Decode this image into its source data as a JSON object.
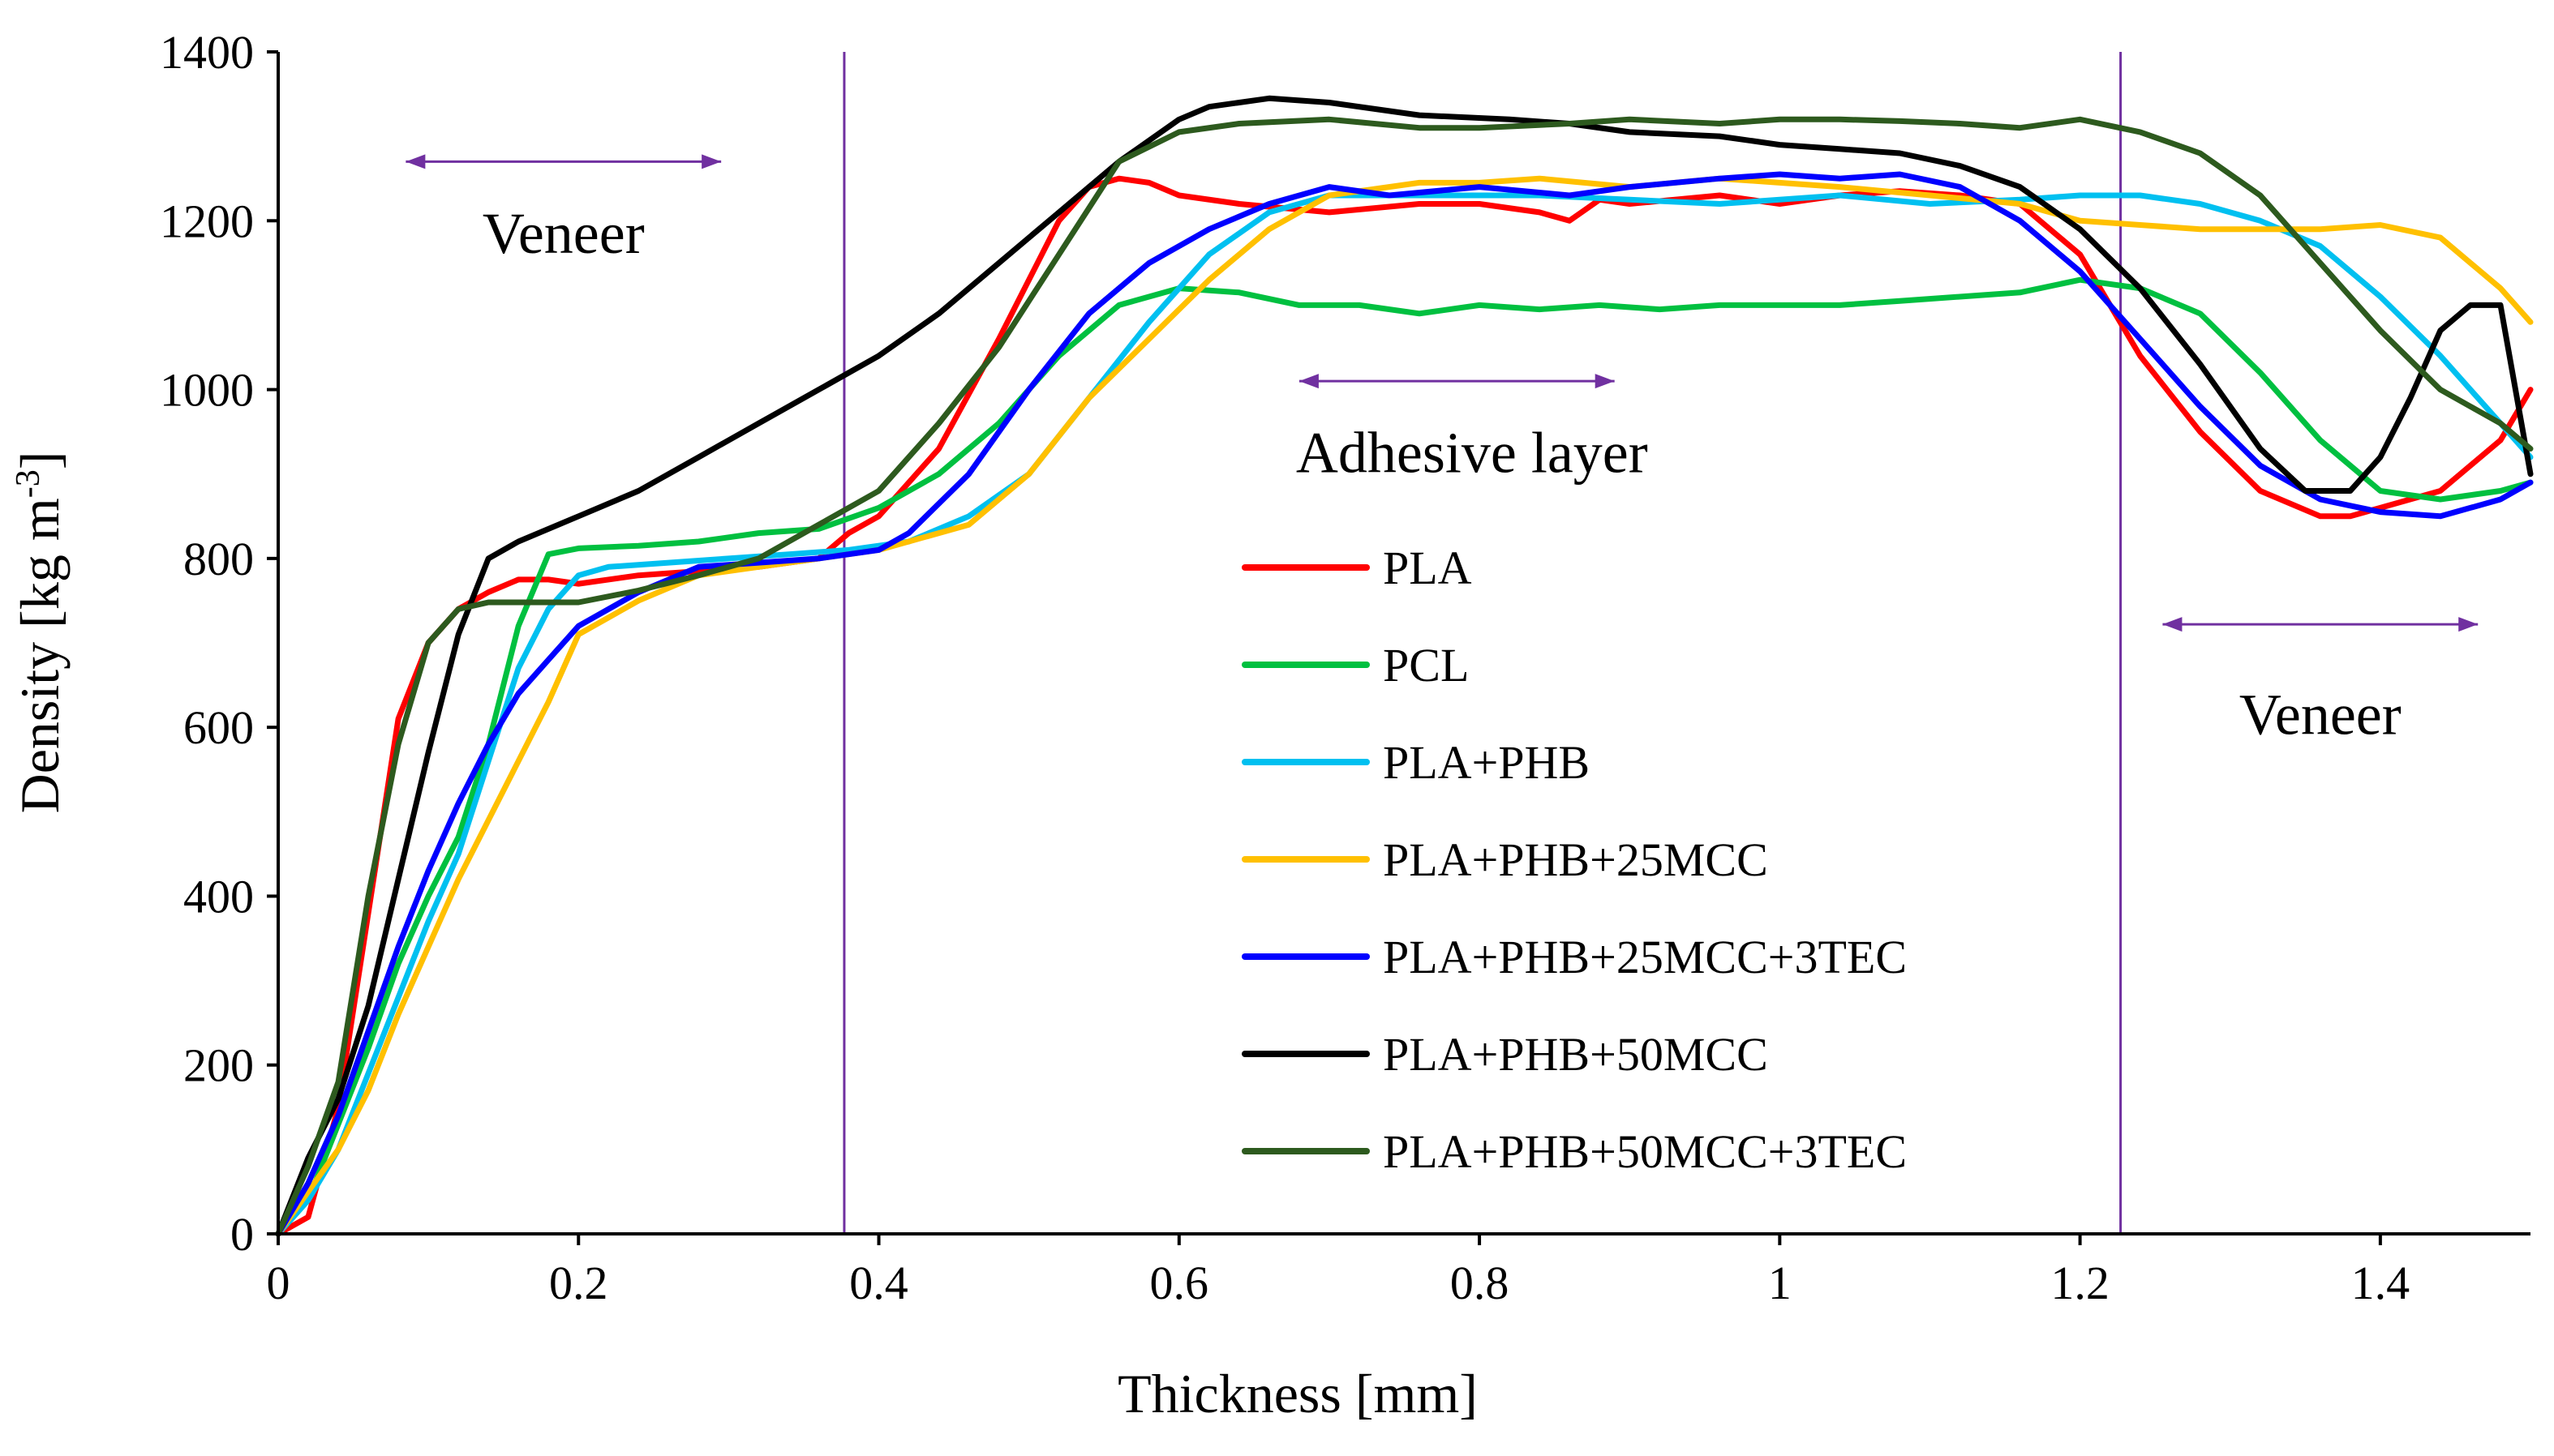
{
  "chart_data": {
    "type": "line",
    "title": "",
    "xlabel": "Thickness  [mm]",
    "ylabel": "Density  [kg m",
    "ylabel_sup": "-3",
    "ylabel_close": "]",
    "xlim": [
      0,
      1.5
    ],
    "ylim": [
      0,
      1400
    ],
    "xticks": [
      0,
      0.2,
      0.4,
      0.6,
      0.8,
      1,
      1.2,
      1.4
    ],
    "xtick_labels": [
      "0",
      "0.2",
      "0.4",
      "0.6",
      "0.8",
      "1",
      "1.2",
      "1.4"
    ],
    "yticks": [
      0,
      200,
      400,
      600,
      800,
      1000,
      1200,
      1400
    ],
    "ytick_labels": [
      "0",
      "200",
      "400",
      "600",
      "800",
      "1000",
      "1200",
      "1400"
    ],
    "grid": false,
    "legend_position": "center",
    "vlines": [
      0.377,
      1.227
    ],
    "annotations": [
      {
        "text": "Veneer",
        "arrow_from": 0.085,
        "arrow_to": 0.295,
        "arrow_y": 1270,
        "text_x": 0.19,
        "text_y": 1185
      },
      {
        "text": "Adhesive layer",
        "arrow_from": 0.68,
        "arrow_to": 0.89,
        "arrow_y": 1010,
        "text_x": 0.795,
        "text_y": 925
      },
      {
        "text": "Veneer",
        "arrow_from": 1.255,
        "arrow_to": 1.465,
        "arrow_y": 722,
        "text_x": 1.36,
        "text_y": 615
      }
    ],
    "series": [
      {
        "name": "PLA",
        "color": "#ff0000",
        "x": [
          0,
          0.02,
          0.04,
          0.06,
          0.08,
          0.1,
          0.12,
          0.14,
          0.16,
          0.18,
          0.2,
          0.24,
          0.28,
          0.32,
          0.36,
          0.38,
          0.4,
          0.44,
          0.48,
          0.52,
          0.54,
          0.56,
          0.58,
          0.6,
          0.64,
          0.7,
          0.76,
          0.8,
          0.84,
          0.86,
          0.88,
          0.9,
          0.96,
          1.0,
          1.04,
          1.08,
          1.12,
          1.16,
          1.2,
          1.24,
          1.28,
          1.32,
          1.36,
          1.38,
          1.4,
          1.44,
          1.48,
          1.5
        ],
        "values": [
          0,
          20,
          150,
          380,
          610,
          700,
          740,
          760,
          775,
          775,
          770,
          780,
          785,
          790,
          800,
          830,
          850,
          930,
          1060,
          1200,
          1240,
          1250,
          1245,
          1230,
          1220,
          1210,
          1220,
          1220,
          1210,
          1200,
          1225,
          1220,
          1230,
          1220,
          1230,
          1235,
          1230,
          1220,
          1160,
          1040,
          950,
          880,
          850,
          850,
          860,
          880,
          940,
          1000
        ]
      },
      {
        "name": "PCL",
        "color": "#00c040",
        "x": [
          0,
          0.02,
          0.04,
          0.06,
          0.08,
          0.1,
          0.12,
          0.14,
          0.16,
          0.18,
          0.2,
          0.24,
          0.28,
          0.32,
          0.36,
          0.4,
          0.44,
          0.48,
          0.52,
          0.56,
          0.6,
          0.64,
          0.68,
          0.72,
          0.76,
          0.8,
          0.84,
          0.88,
          0.92,
          0.96,
          1.0,
          1.04,
          1.08,
          1.12,
          1.16,
          1.2,
          1.24,
          1.28,
          1.32,
          1.36,
          1.4,
          1.44,
          1.48,
          1.5
        ],
        "values": [
          0,
          40,
          130,
          220,
          320,
          400,
          470,
          580,
          720,
          805,
          812,
          815,
          820,
          830,
          835,
          860,
          900,
          960,
          1040,
          1100,
          1120,
          1115,
          1100,
          1100,
          1090,
          1100,
          1095,
          1100,
          1095,
          1100,
          1100,
          1100,
          1105,
          1110,
          1115,
          1130,
          1120,
          1090,
          1020,
          940,
          880,
          870,
          880,
          890
        ]
      },
      {
        "name": "PLA+PHB",
        "color": "#00c0f0",
        "x": [
          0,
          0.02,
          0.04,
          0.06,
          0.08,
          0.1,
          0.12,
          0.14,
          0.16,
          0.18,
          0.2,
          0.22,
          0.26,
          0.3,
          0.34,
          0.38,
          0.42,
          0.46,
          0.5,
          0.54,
          0.58,
          0.62,
          0.66,
          0.7,
          0.76,
          0.8,
          0.84,
          0.9,
          0.96,
          1.0,
          1.04,
          1.1,
          1.16,
          1.2,
          1.24,
          1.28,
          1.32,
          1.36,
          1.4,
          1.44,
          1.48,
          1.5
        ],
        "values": [
          0,
          40,
          100,
          190,
          280,
          370,
          450,
          560,
          670,
          740,
          780,
          790,
          795,
          800,
          805,
          810,
          820,
          850,
          900,
          990,
          1080,
          1160,
          1210,
          1230,
          1230,
          1230,
          1230,
          1225,
          1220,
          1225,
          1230,
          1220,
          1225,
          1230,
          1230,
          1220,
          1200,
          1170,
          1110,
          1040,
          960,
          920
        ]
      },
      {
        "name": "PLA+PHB+25MCC",
        "color": "#ffc000",
        "x": [
          0,
          0.02,
          0.04,
          0.06,
          0.08,
          0.1,
          0.12,
          0.14,
          0.16,
          0.18,
          0.2,
          0.24,
          0.28,
          0.32,
          0.36,
          0.4,
          0.46,
          0.5,
          0.54,
          0.58,
          0.62,
          0.66,
          0.7,
          0.76,
          0.8,
          0.84,
          0.9,
          0.96,
          1.0,
          1.04,
          1.1,
          1.16,
          1.2,
          1.24,
          1.28,
          1.32,
          1.36,
          1.4,
          1.44,
          1.48,
          1.5
        ],
        "values": [
          0,
          50,
          100,
          170,
          260,
          340,
          420,
          490,
          560,
          630,
          710,
          750,
          780,
          790,
          800,
          810,
          840,
          900,
          990,
          1060,
          1130,
          1190,
          1230,
          1245,
          1245,
          1250,
          1240,
          1250,
          1245,
          1240,
          1230,
          1220,
          1200,
          1195,
          1190,
          1190,
          1190,
          1195,
          1180,
          1120,
          1080
        ]
      },
      {
        "name": "PLA+PHB+25MCC+3TEC",
        "color": "#0000ff",
        "x": [
          0,
          0.02,
          0.04,
          0.06,
          0.08,
          0.1,
          0.12,
          0.14,
          0.16,
          0.18,
          0.2,
          0.24,
          0.28,
          0.32,
          0.36,
          0.4,
          0.42,
          0.46,
          0.5,
          0.54,
          0.58,
          0.62,
          0.66,
          0.7,
          0.74,
          0.8,
          0.86,
          0.9,
          0.96,
          1.0,
          1.04,
          1.08,
          1.12,
          1.16,
          1.2,
          1.24,
          1.28,
          1.32,
          1.36,
          1.4,
          1.44,
          1.48,
          1.5
        ],
        "values": [
          0,
          60,
          140,
          240,
          340,
          430,
          510,
          580,
          640,
          680,
          720,
          760,
          790,
          795,
          800,
          810,
          830,
          900,
          1000,
          1090,
          1150,
          1190,
          1220,
          1240,
          1230,
          1240,
          1230,
          1240,
          1250,
          1255,
          1250,
          1255,
          1240,
          1200,
          1140,
          1060,
          980,
          910,
          870,
          855,
          850,
          870,
          890
        ]
      },
      {
        "name": "PLA+PHB+50MCC",
        "color": "#000000",
        "x": [
          0,
          0.02,
          0.04,
          0.06,
          0.08,
          0.1,
          0.12,
          0.14,
          0.16,
          0.2,
          0.24,
          0.28,
          0.32,
          0.36,
          0.4,
          0.44,
          0.48,
          0.52,
          0.56,
          0.6,
          0.62,
          0.66,
          0.7,
          0.76,
          0.82,
          0.86,
          0.9,
          0.96,
          1.0,
          1.04,
          1.08,
          1.12,
          1.16,
          1.2,
          1.24,
          1.28,
          1.32,
          1.35,
          1.38,
          1.4,
          1.42,
          1.44,
          1.46,
          1.48,
          1.5
        ],
        "values": [
          0,
          90,
          160,
          270,
          420,
          570,
          710,
          800,
          820,
          850,
          880,
          920,
          960,
          1000,
          1040,
          1090,
          1150,
          1210,
          1270,
          1320,
          1335,
          1345,
          1340,
          1325,
          1320,
          1315,
          1305,
          1300,
          1290,
          1285,
          1280,
          1265,
          1240,
          1190,
          1120,
          1030,
          930,
          880,
          880,
          920,
          990,
          1070,
          1100,
          1100,
          900
        ]
      },
      {
        "name": "PLA+PHB+50MCC+3TEC",
        "color": "#2d5a1e",
        "x": [
          0,
          0.02,
          0.04,
          0.06,
          0.08,
          0.1,
          0.12,
          0.14,
          0.16,
          0.2,
          0.24,
          0.28,
          0.32,
          0.36,
          0.4,
          0.44,
          0.48,
          0.52,
          0.56,
          0.6,
          0.64,
          0.7,
          0.76,
          0.8,
          0.86,
          0.9,
          0.96,
          1.0,
          1.04,
          1.08,
          1.12,
          1.16,
          1.2,
          1.24,
          1.28,
          1.32,
          1.36,
          1.4,
          1.44,
          1.48,
          1.5
        ],
        "values": [
          0,
          80,
          180,
          400,
          580,
          700,
          740,
          748,
          748,
          748,
          762,
          780,
          800,
          840,
          880,
          960,
          1050,
          1160,
          1270,
          1305,
          1315,
          1320,
          1310,
          1310,
          1315,
          1320,
          1315,
          1320,
          1320,
          1318,
          1315,
          1310,
          1320,
          1305,
          1280,
          1230,
          1150,
          1070,
          1000,
          960,
          930
        ]
      }
    ]
  }
}
